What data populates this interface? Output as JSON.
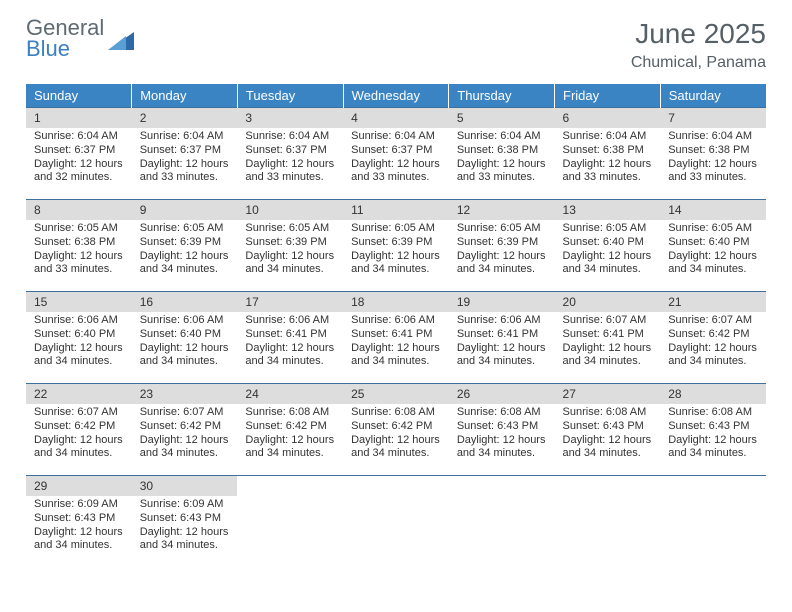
{
  "brand": {
    "top": "General",
    "bottom": "Blue"
  },
  "title": "June 2025",
  "location": "Chumical, Panama",
  "colors": {
    "header_bg": "#3b84c4",
    "header_text": "#ffffff",
    "week_border": "#3b6f9e",
    "daynum_bg": "#dddddd",
    "text": "#333333",
    "logo_gray": "#5f6b72",
    "logo_blue": "#3b7fc4"
  },
  "day_headers": [
    "Sunday",
    "Monday",
    "Tuesday",
    "Wednesday",
    "Thursday",
    "Friday",
    "Saturday"
  ],
  "weeks": [
    [
      {
        "n": "1",
        "sunrise": "6:04 AM",
        "sunset": "6:37 PM",
        "daylight": "12 hours and 32 minutes."
      },
      {
        "n": "2",
        "sunrise": "6:04 AM",
        "sunset": "6:37 PM",
        "daylight": "12 hours and 33 minutes."
      },
      {
        "n": "3",
        "sunrise": "6:04 AM",
        "sunset": "6:37 PM",
        "daylight": "12 hours and 33 minutes."
      },
      {
        "n": "4",
        "sunrise": "6:04 AM",
        "sunset": "6:37 PM",
        "daylight": "12 hours and 33 minutes."
      },
      {
        "n": "5",
        "sunrise": "6:04 AM",
        "sunset": "6:38 PM",
        "daylight": "12 hours and 33 minutes."
      },
      {
        "n": "6",
        "sunrise": "6:04 AM",
        "sunset": "6:38 PM",
        "daylight": "12 hours and 33 minutes."
      },
      {
        "n": "7",
        "sunrise": "6:04 AM",
        "sunset": "6:38 PM",
        "daylight": "12 hours and 33 minutes."
      }
    ],
    [
      {
        "n": "8",
        "sunrise": "6:05 AM",
        "sunset": "6:38 PM",
        "daylight": "12 hours and 33 minutes."
      },
      {
        "n": "9",
        "sunrise": "6:05 AM",
        "sunset": "6:39 PM",
        "daylight": "12 hours and 34 minutes."
      },
      {
        "n": "10",
        "sunrise": "6:05 AM",
        "sunset": "6:39 PM",
        "daylight": "12 hours and 34 minutes."
      },
      {
        "n": "11",
        "sunrise": "6:05 AM",
        "sunset": "6:39 PM",
        "daylight": "12 hours and 34 minutes."
      },
      {
        "n": "12",
        "sunrise": "6:05 AM",
        "sunset": "6:39 PM",
        "daylight": "12 hours and 34 minutes."
      },
      {
        "n": "13",
        "sunrise": "6:05 AM",
        "sunset": "6:40 PM",
        "daylight": "12 hours and 34 minutes."
      },
      {
        "n": "14",
        "sunrise": "6:05 AM",
        "sunset": "6:40 PM",
        "daylight": "12 hours and 34 minutes."
      }
    ],
    [
      {
        "n": "15",
        "sunrise": "6:06 AM",
        "sunset": "6:40 PM",
        "daylight": "12 hours and 34 minutes."
      },
      {
        "n": "16",
        "sunrise": "6:06 AM",
        "sunset": "6:40 PM",
        "daylight": "12 hours and 34 minutes."
      },
      {
        "n": "17",
        "sunrise": "6:06 AM",
        "sunset": "6:41 PM",
        "daylight": "12 hours and 34 minutes."
      },
      {
        "n": "18",
        "sunrise": "6:06 AM",
        "sunset": "6:41 PM",
        "daylight": "12 hours and 34 minutes."
      },
      {
        "n": "19",
        "sunrise": "6:06 AM",
        "sunset": "6:41 PM",
        "daylight": "12 hours and 34 minutes."
      },
      {
        "n": "20",
        "sunrise": "6:07 AM",
        "sunset": "6:41 PM",
        "daylight": "12 hours and 34 minutes."
      },
      {
        "n": "21",
        "sunrise": "6:07 AM",
        "sunset": "6:42 PM",
        "daylight": "12 hours and 34 minutes."
      }
    ],
    [
      {
        "n": "22",
        "sunrise": "6:07 AM",
        "sunset": "6:42 PM",
        "daylight": "12 hours and 34 minutes."
      },
      {
        "n": "23",
        "sunrise": "6:07 AM",
        "sunset": "6:42 PM",
        "daylight": "12 hours and 34 minutes."
      },
      {
        "n": "24",
        "sunrise": "6:08 AM",
        "sunset": "6:42 PM",
        "daylight": "12 hours and 34 minutes."
      },
      {
        "n": "25",
        "sunrise": "6:08 AM",
        "sunset": "6:42 PM",
        "daylight": "12 hours and 34 minutes."
      },
      {
        "n": "26",
        "sunrise": "6:08 AM",
        "sunset": "6:43 PM",
        "daylight": "12 hours and 34 minutes."
      },
      {
        "n": "27",
        "sunrise": "6:08 AM",
        "sunset": "6:43 PM",
        "daylight": "12 hours and 34 minutes."
      },
      {
        "n": "28",
        "sunrise": "6:08 AM",
        "sunset": "6:43 PM",
        "daylight": "12 hours and 34 minutes."
      }
    ],
    [
      {
        "n": "29",
        "sunrise": "6:09 AM",
        "sunset": "6:43 PM",
        "daylight": "12 hours and 34 minutes."
      },
      {
        "n": "30",
        "sunrise": "6:09 AM",
        "sunset": "6:43 PM",
        "daylight": "12 hours and 34 minutes."
      },
      null,
      null,
      null,
      null,
      null
    ]
  ],
  "labels": {
    "sunrise": "Sunrise:",
    "sunset": "Sunset:",
    "daylight": "Daylight:"
  }
}
